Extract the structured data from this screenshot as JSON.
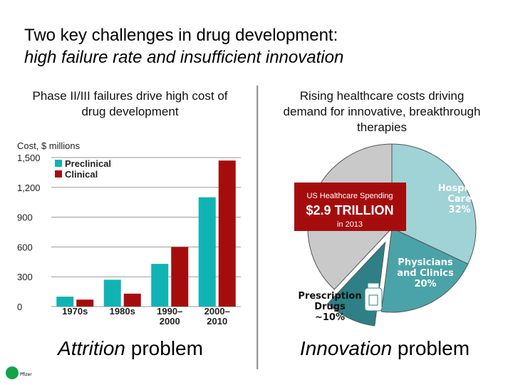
{
  "slide": {
    "title_line1": "Two key challenges in drug development:",
    "title_line2": "high failure rate and insufficient innovation",
    "left_heading": "Phase II/III failures drive high cost of drug development",
    "right_heading": "Rising healthcare costs driving demand for innovative, breakthrough therapies",
    "left_bottom_italic": "Attrition",
    "left_bottom_rest": " problem",
    "right_bottom_italic": "Innovation",
    "right_bottom_rest": " problem",
    "logo_text": "Pfizer"
  },
  "chart_data": [
    {
      "type": "bar",
      "ylabel": "Cost, $ millions",
      "ylim": [
        0,
        1500
      ],
      "yticks": [
        "0",
        "300",
        "600",
        "900",
        "1,200",
        "1,500"
      ],
      "categories": [
        "1970s",
        "1980s",
        "1990–\n2000",
        "2000–\n2010"
      ],
      "series": [
        {
          "name": "Preclinical",
          "color": "#10b3b3",
          "values": [
            100,
            270,
            430,
            1100
          ]
        },
        {
          "name": "Clinical",
          "color": "#a50d0d",
          "values": [
            70,
            130,
            600,
            1470
          ]
        }
      ],
      "legend": "top-left"
    },
    {
      "type": "pie",
      "center_box": {
        "line1": "US Healthcare Spending",
        "line2": "$2.9 TRILLION",
        "line3": "in 2013",
        "color": "#a50d0d"
      },
      "slices": [
        {
          "label_lines": [
            "Hospital",
            "Care",
            "32%"
          ],
          "value": 32,
          "color": "#9fd3d5"
        },
        {
          "label_lines": [
            "Physicians",
            "and Clinics",
            "20%"
          ],
          "value": 20,
          "color": "#4aa3a8"
        },
        {
          "label_lines": [
            "Prescription",
            "Drugs",
            "~10%"
          ],
          "value": 10,
          "color": "#2f7f86"
        },
        {
          "label_lines": [],
          "value": 38,
          "color": "#c9c9c9"
        }
      ]
    }
  ]
}
